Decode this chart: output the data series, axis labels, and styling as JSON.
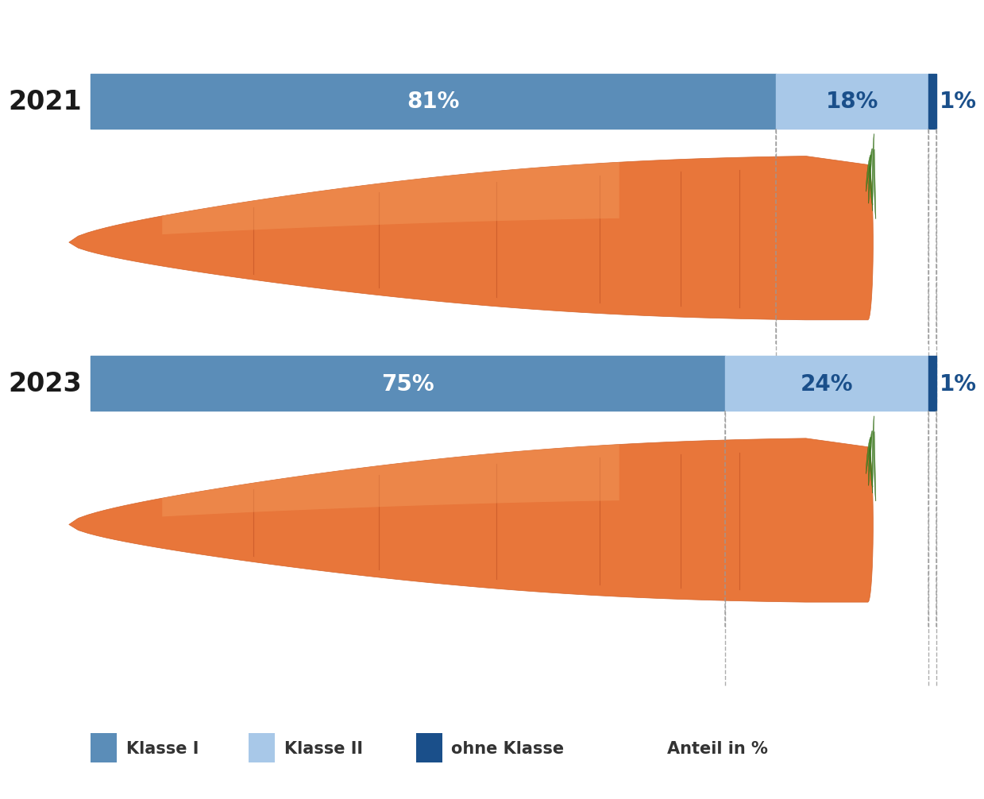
{
  "years": [
    "2021",
    "2023"
  ],
  "segments": {
    "klasse1": [
      81,
      75
    ],
    "klasse2": [
      18,
      24
    ],
    "ohne_klasse": [
      1,
      1
    ]
  },
  "colors": {
    "klasse1": "#5B8DB8",
    "klasse2": "#A8C8E8",
    "ohne_klasse": "#1A4F8A"
  },
  "labels": {
    "klasse1": "Klasse I",
    "klasse2": "Klasse II",
    "ohne_klasse": "ohne Klasse",
    "anteil": "Anteil in %"
  },
  "text_color_white": "#FFFFFF",
  "text_color_dark_blue": "#1A4F8A",
  "year_label_color": "#1a1a1a",
  "background_color": "#FFFFFF",
  "bar_label_fontsize": 20,
  "year_fontsize": 24,
  "legend_fontsize": 15
}
